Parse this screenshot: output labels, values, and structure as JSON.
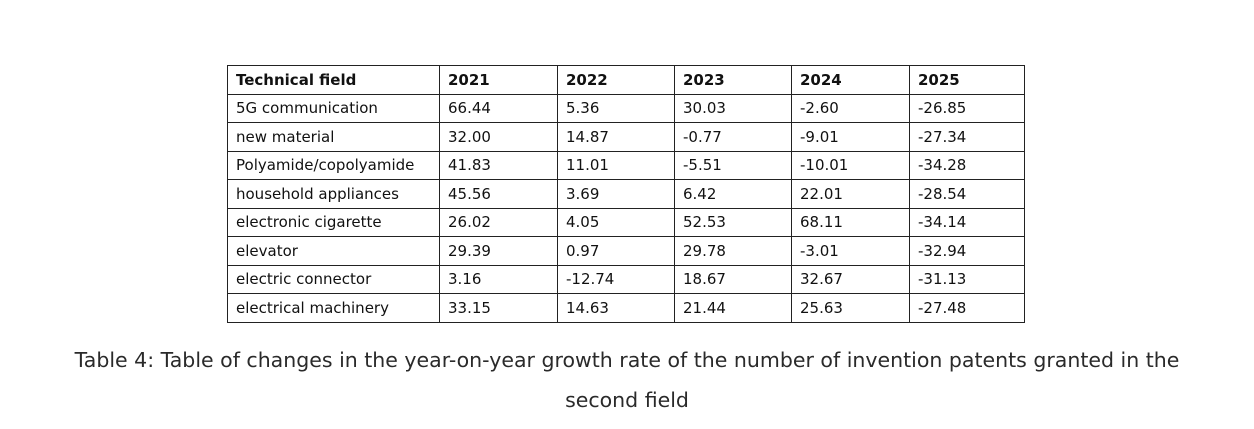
{
  "table": {
    "headers": [
      "Technical field",
      "2021",
      "2022",
      "2023",
      "2024",
      "2025"
    ],
    "rows": [
      [
        "5G communication",
        "66.44",
        "5.36",
        "30.03",
        "-2.60",
        "-26.85"
      ],
      [
        "new material",
        "32.00",
        "14.87",
        "-0.77",
        "-9.01",
        "-27.34"
      ],
      [
        "Polyamide/copolyamide",
        "41.83",
        "11.01",
        "-5.51",
        "-10.01",
        "-34.28"
      ],
      [
        "household appliances",
        "45.56",
        "3.69",
        "6.42",
        "22.01",
        "-28.54"
      ],
      [
        "electronic cigarette",
        "26.02",
        "4.05",
        "52.53",
        "68.11",
        "-34.14"
      ],
      [
        "elevator",
        "29.39",
        "0.97",
        "29.78",
        "-3.01",
        "-32.94"
      ],
      [
        "electric connector",
        "3.16",
        "-12.74",
        "18.67",
        "32.67",
        "-31.13"
      ],
      [
        "electrical machinery",
        "33.15",
        "14.63",
        "21.44",
        "25.63",
        "-27.48"
      ]
    ]
  },
  "caption": {
    "line1": "Table 4: Table of changes in the year-on-year growth rate of the number of invention patents granted in the",
    "line2": "second field"
  }
}
